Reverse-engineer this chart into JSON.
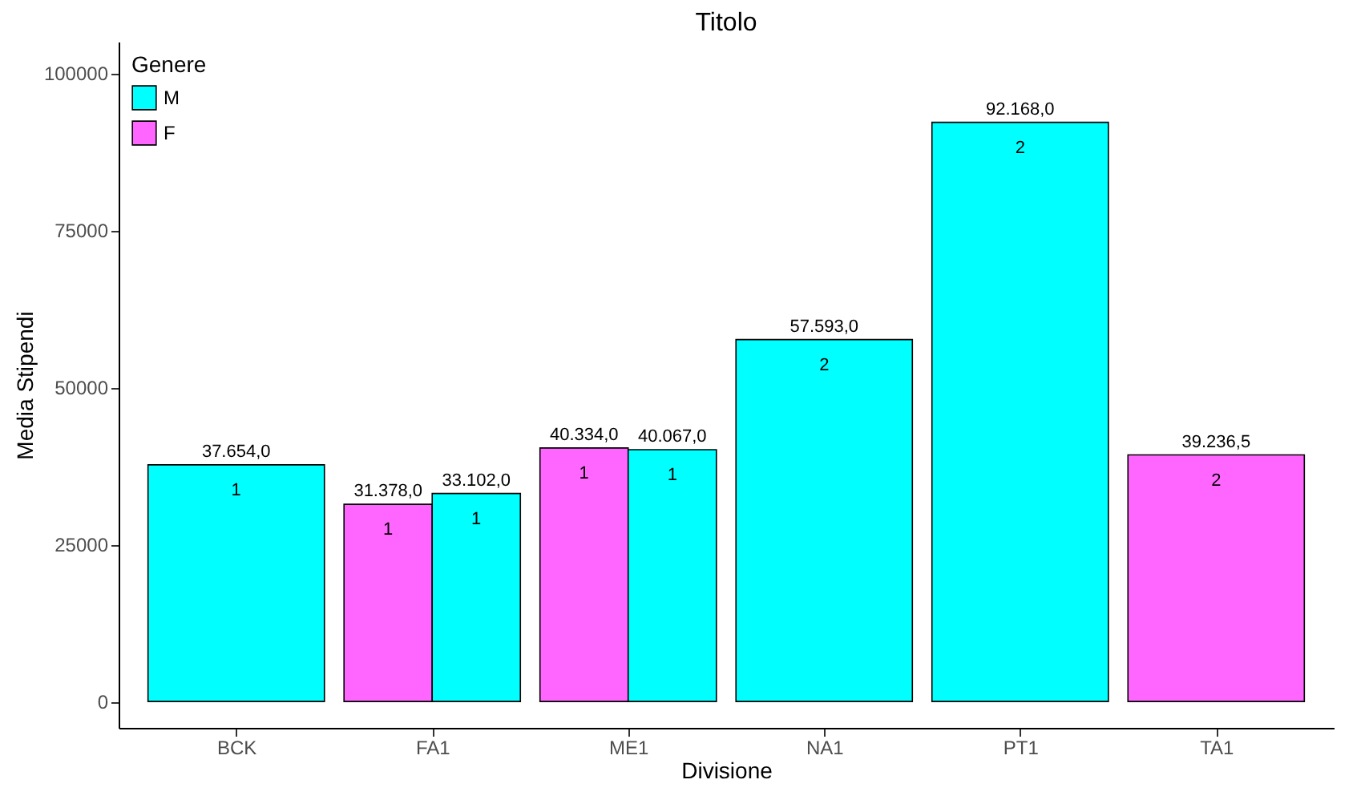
{
  "chart_data": {
    "type": "bar",
    "title": "Titolo",
    "xlabel": "Divisione",
    "ylabel": "Media Stipendi",
    "legend_title": "Genere",
    "legend": "top left",
    "categories": [
      "BCK",
      "FA1",
      "ME1",
      "NA1",
      "PT1",
      "TA1"
    ],
    "series": [
      {
        "name": "M",
        "color": "#00ffff",
        "values": [
          37654,
          33102,
          40067,
          57593,
          92168,
          null
        ],
        "value_labels": [
          "37.654,0",
          "33.102,0",
          "40.067,0",
          "57.593,0",
          "92.168,0",
          null
        ]
      },
      {
        "name": "F",
        "color": "#ff66ff",
        "values": [
          null,
          31378,
          40334,
          null,
          null,
          39236.5
        ],
        "value_labels": [
          null,
          "31.378,0",
          "40.334,0",
          null,
          null,
          "39.236,5"
        ]
      }
    ],
    "ylim": [
      -4200,
      105000
    ],
    "yticks": [
      0,
      25000,
      50000,
      75000,
      100000
    ],
    "annotations": [
      {
        "text": "1",
        "x": "BCK",
        "y": 37654
      },
      {
        "text": "1",
        "x": "FA1",
        "y": 31378
      },
      {
        "text": "1",
        "x": "FA1",
        "y": 33102
      },
      {
        "text": "1",
        "x": "ME1",
        "y": 40334
      },
      {
        "text": "1",
        "x": "ME1",
        "y": 40067
      },
      {
        "text": "2",
        "x": "NA1",
        "y": 57593
      },
      {
        "text": "2",
        "x": "PT1",
        "y": 92168
      },
      {
        "text": "2",
        "x": "TA1",
        "y": 39236.5
      }
    ]
  }
}
